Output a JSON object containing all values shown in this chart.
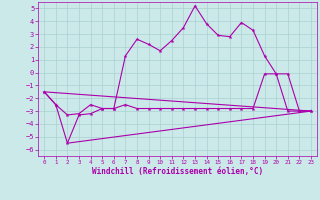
{
  "xlabel": "Windchill (Refroidissement éolien,°C)",
  "xlim": [
    -0.5,
    23.5
  ],
  "ylim": [
    -6.5,
    5.5
  ],
  "yticks": [
    -6,
    -5,
    -4,
    -3,
    -2,
    -1,
    0,
    1,
    2,
    3,
    4,
    5
  ],
  "xticks": [
    0,
    1,
    2,
    3,
    4,
    5,
    6,
    7,
    8,
    9,
    10,
    11,
    12,
    13,
    14,
    15,
    16,
    17,
    18,
    19,
    20,
    21,
    22,
    23
  ],
  "bg_color": "#cce9e9",
  "grid_color": "#aad0d0",
  "line_color": "#aa00aa",
  "line1_x": [
    0,
    1,
    2,
    3,
    4,
    5,
    6,
    7,
    8,
    9,
    10,
    11,
    12,
    13,
    14,
    15,
    16,
    17,
    18,
    19,
    20,
    21,
    22,
    23
  ],
  "line1_y": [
    -1.5,
    -2.5,
    -3.3,
    -3.2,
    -2.5,
    -2.8,
    -2.8,
    1.3,
    2.6,
    2.2,
    1.7,
    2.5,
    3.5,
    5.2,
    3.8,
    2.9,
    2.8,
    3.9,
    3.3,
    1.3,
    -0.1,
    -0.1,
    -3.0,
    -3.0
  ],
  "line2_x": [
    0,
    1,
    2,
    3,
    4,
    5,
    6,
    7,
    8,
    9,
    10,
    11,
    12,
    13,
    14,
    15,
    16,
    17,
    18,
    19,
    20,
    21,
    22,
    23
  ],
  "line2_y": [
    -1.5,
    -2.5,
    -5.5,
    -3.3,
    -3.2,
    -2.8,
    -2.8,
    -2.5,
    -2.8,
    -2.8,
    -2.8,
    -2.8,
    -2.8,
    -2.8,
    -2.8,
    -2.8,
    -2.8,
    -2.8,
    -2.8,
    -0.1,
    -0.1,
    -3.0,
    -3.0,
    -3.0
  ],
  "line3_x": [
    0,
    23
  ],
  "line3_y": [
    -1.5,
    -3.0
  ],
  "line4_x": [
    2,
    23
  ],
  "line4_y": [
    -5.5,
    -3.0
  ]
}
